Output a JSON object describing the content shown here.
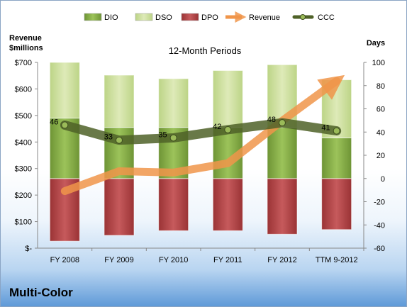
{
  "company": "Multi-Color",
  "chart_data": {
    "type": "bar",
    "title": "12-Month Periods",
    "ylabel_left": [
      "Revenue",
      "$millions"
    ],
    "ylabel_right": "Days",
    "categories": [
      "FY 2008",
      "FY 2009",
      "FY 2010",
      "FY 2011",
      "FY 2012",
      "TTM 9-2012"
    ],
    "left_axis": {
      "range": [
        0,
        700
      ],
      "ticks": [
        0,
        100,
        200,
        300,
        400,
        500,
        600,
        700
      ],
      "tick_labels": [
        "$-",
        "$100",
        "$200",
        "$300",
        "$400",
        "$500",
        "$600",
        "$700"
      ]
    },
    "right_axis": {
      "range": [
        -60,
        100
      ],
      "ticks": [
        -60,
        -40,
        -20,
        0,
        20,
        40,
        60,
        80,
        100
      ]
    },
    "legend": {
      "placement": "top",
      "entries": [
        "DIO",
        "DSO",
        "DPO",
        "Revenue",
        "CCC"
      ]
    },
    "series": [
      {
        "name": "DIO",
        "axis": "right",
        "values": [
          52,
          44,
          44,
          44,
          44,
          35
        ]
      },
      {
        "name": "DSO",
        "axis": "right",
        "values": [
          48,
          45,
          42,
          49,
          54,
          50
        ]
      },
      {
        "name": "DPO",
        "axis": "right",
        "values": [
          -54,
          -49,
          -45,
          -45,
          -48,
          -44
        ]
      },
      {
        "name": "Revenue",
        "axis": "left",
        "values": [
          215,
          290,
          285,
          320,
          480,
          630
        ]
      },
      {
        "name": "CCC",
        "axis": "right",
        "values": [
          46,
          33,
          35,
          42,
          48,
          41
        ],
        "data_labels": [
          "46",
          "33",
          "35",
          "42",
          "48",
          "41"
        ]
      }
    ],
    "colors": {
      "DIO": "#8db34a",
      "DSO": "#cde0a0",
      "DPO": "#b7484a",
      "Revenue": "#f0954a",
      "CCC": "#556b2f"
    },
    "gridlines": false
  }
}
